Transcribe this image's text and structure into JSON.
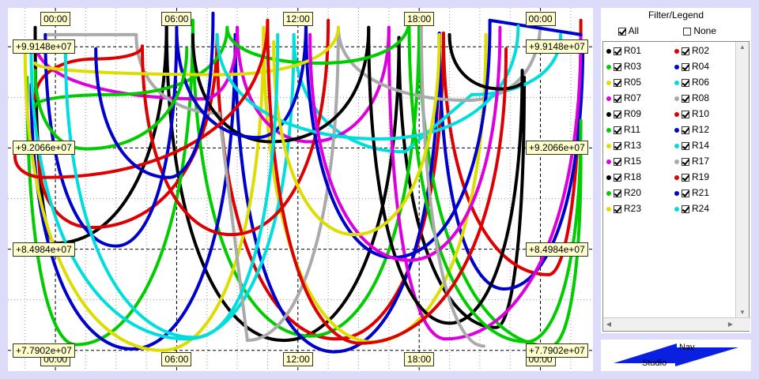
{
  "chart_data": {
    "type": "line",
    "x_tick_labels_top": [
      "00:00",
      "06:00",
      "12:00",
      "18:00",
      "00:00"
    ],
    "x_tick_labels_bottom": [
      "00:00",
      "06:00",
      "12:00",
      "18:00",
      "00:00"
    ],
    "y_tick_labels": [
      "+9.9148e+07",
      "+9.2066e+07",
      "+8.4984e+07",
      "+7.7902e+07"
    ],
    "y_ticks": [
      99148000,
      92066000,
      84984000,
      77902000
    ],
    "x_ticks_hours": [
      0,
      6,
      12,
      18,
      24
    ],
    "xlim_hours": [
      -2.35,
      26.6
    ],
    "ylim": [
      76450000,
      101870000
    ],
    "grid": true,
    "series": [
      {
        "name": "R01",
        "color": "#000000",
        "minima": [
          [
            0,
            85400000
          ],
          [
            11.3,
            78600000
          ],
          [
            21.8,
            79500000
          ]
        ],
        "maxima": [
          [
            -1,
            100500000
          ],
          [
            5.5,
            100800000
          ],
          [
            17,
            99800000
          ],
          [
            23.2,
            97000000
          ]
        ]
      },
      {
        "name": "R02",
        "color": "#dd0000",
        "minima": [
          [
            1.8,
            86500000
          ],
          [
            13.9,
            78700000
          ],
          [
            24.4,
            83200000
          ]
        ],
        "maxima": [
          [
            -0.8,
            91300000
          ],
          [
            8,
            100000000
          ],
          [
            19.2,
            100100000
          ],
          [
            26,
            101000000
          ]
        ]
      },
      {
        "name": "R03",
        "color": "#00cc00",
        "minima": [
          [
            1,
            78300000
          ],
          [
            12.6,
            78900000
          ],
          [
            24.5,
            78200000
          ]
        ],
        "maxima": [
          [
            -1.4,
            97000000
          ],
          [
            6.8,
            101000000
          ],
          [
            18,
            101000000
          ],
          [
            26,
            91500000
          ]
        ]
      },
      {
        "name": "R04",
        "color": "#0000cc",
        "minima": [
          [
            3.8,
            78000000
          ],
          [
            13.8,
            77800000
          ],
          [
            22.2,
            82200000
          ]
        ],
        "maxima": [
          [
            -1.2,
            96500000
          ],
          [
            8.9,
            100000000
          ],
          [
            19,
            100100000
          ],
          [
            26.1,
            99500000
          ]
        ]
      },
      {
        "name": "R05",
        "color": "#dddd00",
        "minima": [
          [
            5.3,
            77900000
          ],
          [
            15.7,
            78500000
          ]
        ],
        "maxima": [
          [
            -1.5,
            99000000
          ],
          [
            10.3,
            100500000
          ],
          [
            21.3,
            100000000
          ]
        ]
      },
      {
        "name": "R06",
        "color": "#00dddd",
        "minima": [
          [
            6.5,
            78700000
          ],
          [
            17.3,
            91800000
          ],
          [
            20.6,
            95800000
          ]
        ],
        "maxima": [
          [
            -1.2,
            99000000
          ],
          [
            11.8,
            100000000
          ],
          [
            25,
            100000000
          ]
        ]
      },
      {
        "name": "R07",
        "color": "#dd00dd",
        "minima": [
          [
            7.3,
            95500000
          ],
          [
            12.6,
            92500000
          ],
          [
            19.3,
            78700000
          ]
        ],
        "maxima": [
          [
            -1,
            99500000
          ],
          [
            9,
            100500000
          ],
          [
            16.5,
            100500000
          ],
          [
            26,
            100000000
          ]
        ]
      },
      {
        "name": "R08",
        "color": "#aaaaaa",
        "minima": [
          [
            8.1,
            94500000
          ],
          [
            9.5,
            78600000
          ],
          [
            20.4,
            95400000
          ]
        ],
        "maxima": [
          [
            -0.5,
            100000000
          ],
          [
            4,
            100000000
          ],
          [
            14,
            100500000
          ],
          [
            24,
            101000000
          ]
        ]
      },
      {
        "name": "R09",
        "color": "#000000",
        "minima": [
          [
            10.7,
            92500000
          ],
          [
            19.5,
            79800000
          ]
        ],
        "maxima": [
          [
            6.8,
            100000000
          ],
          [
            15.5,
            100500000
          ],
          [
            23.1,
            97500000
          ]
        ]
      },
      {
        "name": "R10",
        "color": "#dd0000",
        "minima": [
          [
            2,
            98300000
          ],
          [
            8.7,
            86000000
          ]
        ],
        "maxima": [
          [
            -1,
            95500000
          ],
          [
            4.3,
            99200000
          ],
          [
            13.5,
            101000000
          ]
        ]
      },
      {
        "name": "R11",
        "color": "#00cc00",
        "minima": [
          [
            2.9,
            95800000
          ],
          [
            13.1,
            98000000
          ],
          [
            23.3,
            78500000
          ]
        ],
        "maxima": [
          [
            -1,
            95000000
          ],
          [
            8.5,
            100500000
          ],
          [
            17.5,
            101000000
          ],
          [
            26,
            94000000
          ]
        ]
      },
      {
        "name": "R12",
        "color": "#0000cc",
        "minima": [
          [
            3,
            85200000
          ],
          [
            10,
            92800000
          ],
          [
            16.7,
            84400000
          ]
        ],
        "maxima": [
          [
            -0.5,
            100000000
          ],
          [
            6,
            100500000
          ],
          [
            12.4,
            101000000
          ],
          [
            21.5,
            101000000
          ],
          [
            26,
            100000000
          ]
        ]
      },
      {
        "name": "R13",
        "color": "#dddd00",
        "minima": [
          [
            8.2,
            97200000
          ]
        ],
        "maxima": [
          [
            -1,
            98000000
          ],
          [
            14,
            100500000
          ]
        ]
      },
      {
        "name": "R14",
        "color": "#00dddd",
        "minima": [
          [
            16,
            92700000
          ]
        ],
        "maxima": [
          [
            8,
            100000000
          ],
          [
            22.9,
            100600000
          ]
        ]
      },
      {
        "name": "R15",
        "color": "#dd00dd",
        "minima": [
          [
            17.5,
            84200000
          ]
        ],
        "maxima": [
          [
            12.6,
            100000000
          ],
          [
            22,
            100500000
          ]
        ]
      },
      {
        "name": "R17",
        "color": "#aaaaaa",
        "minima": [
          [
            21.2,
            78200000
          ]
        ],
        "maxima": [
          [
            18.1,
            101500000
          ]
        ]
      },
      {
        "name": "R18",
        "color": "#000000",
        "minima": [
          [
            22,
            96200000
          ]
        ],
        "maxima": [
          [
            19.5,
            100000000
          ],
          [
            23.2,
            97000000
          ]
        ]
      },
      {
        "name": "R19",
        "color": "#dd0000",
        "minima": [
          [
            -0.5,
            90000000
          ],
          [
            15.1,
            78400000
          ]
        ],
        "maxima": [
          [
            -2,
            91500000
          ],
          [
            10.5,
            101000000
          ],
          [
            22.3,
            99000000
          ]
        ]
      },
      {
        "name": "R20",
        "color": "#00cc00",
        "minima": [
          [
            1.5,
            92000000
          ]
        ],
        "maxima": [
          [
            -1,
            97500000
          ],
          [
            6.5,
            99000000
          ]
        ]
      },
      {
        "name": "R21",
        "color": "#0000cc",
        "minima": [
          [
            5.6,
            90000000
          ]
        ],
        "maxima": [
          [
            2,
            99000000
          ],
          [
            7.8,
            101500000
          ]
        ]
      },
      {
        "name": "R23",
        "color": "#dddd00",
        "minima": [
          [
            14.8,
            86000000
          ]
        ],
        "maxima": [
          [
            10.8,
            99500000
          ],
          [
            19,
            100000000
          ]
        ]
      },
      {
        "name": "R24",
        "color": "#00dddd",
        "minima": [
          [
            6.9,
            78800000
          ]
        ],
        "maxima": [
          [
            0.5,
            99000000
          ],
          [
            11,
            100000000
          ]
        ]
      }
    ]
  },
  "legend": {
    "title": "Filter/Legend",
    "all_label": "All",
    "none_label": "None",
    "all_checked": true,
    "none_checked": false,
    "items": [
      {
        "label": "R01",
        "color": "#000000"
      },
      {
        "label": "R02",
        "color": "#dd0000"
      },
      {
        "label": "R03",
        "color": "#00cc00"
      },
      {
        "label": "R04",
        "color": "#0000cc"
      },
      {
        "label": "R05",
        "color": "#dddd00"
      },
      {
        "label": "R06",
        "color": "#00dddd"
      },
      {
        "label": "R07",
        "color": "#dd00dd"
      },
      {
        "label": "R08",
        "color": "#aaaaaa"
      },
      {
        "label": "R09",
        "color": "#000000"
      },
      {
        "label": "R10",
        "color": "#dd0000"
      },
      {
        "label": "R11",
        "color": "#00cc00"
      },
      {
        "label": "R12",
        "color": "#0000cc"
      },
      {
        "label": "R13",
        "color": "#dddd00"
      },
      {
        "label": "R14",
        "color": "#00dddd"
      },
      {
        "label": "R15",
        "color": "#dd00dd"
      },
      {
        "label": "R17",
        "color": "#aaaaaa"
      },
      {
        "label": "R18",
        "color": "#000000"
      },
      {
        "label": "R19",
        "color": "#dd0000"
      },
      {
        "label": "R20",
        "color": "#00cc00"
      },
      {
        "label": "R21",
        "color": "#0000cc"
      },
      {
        "label": "R23",
        "color": "#dddd00"
      },
      {
        "label": "R24",
        "color": "#00dddd"
      }
    ]
  },
  "nav": {
    "nav_label": "Nav",
    "studio_label": "Studio",
    "accent": "#0a20e0"
  }
}
